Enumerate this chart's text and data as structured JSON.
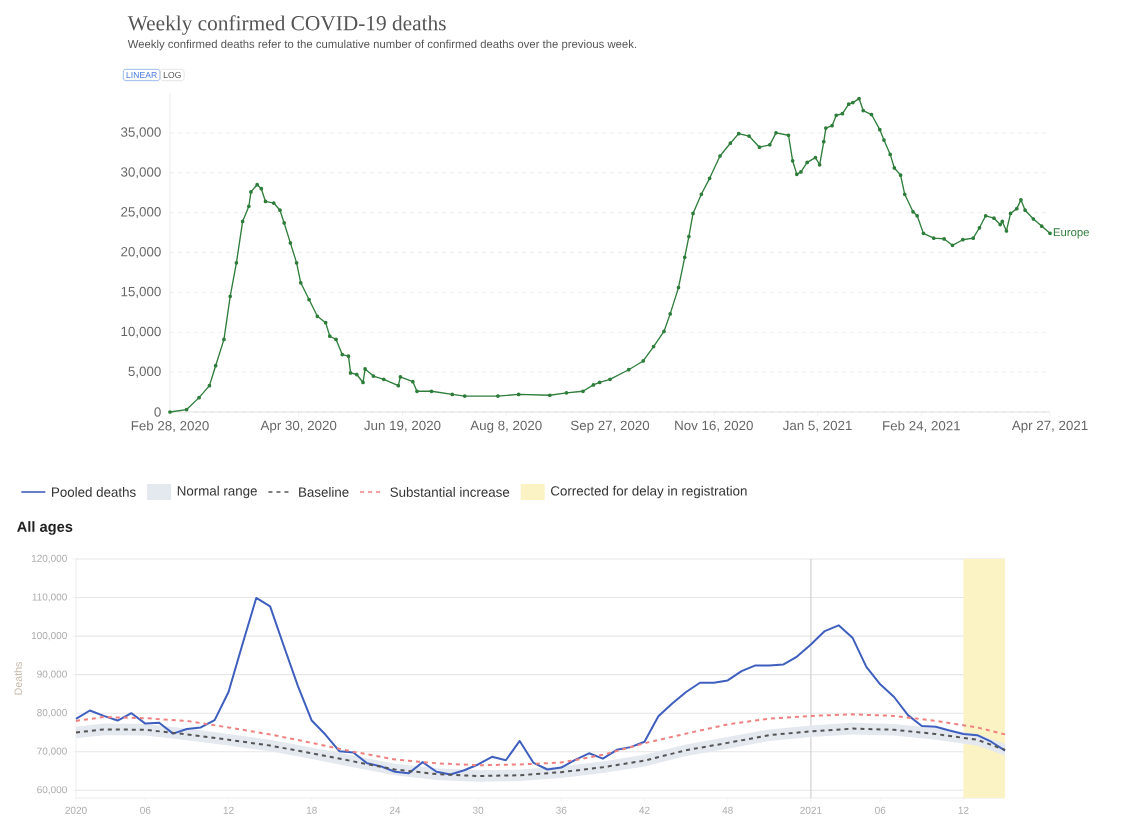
{
  "chart_data": [
    {
      "type": "line",
      "title": "Weekly confirmed COVID-19 deaths",
      "subtitle": "Weekly confirmed deaths refer to the cumulative number of confirmed deaths over the previous week.",
      "annotations": [
        "LINEAR",
        "LOG"
      ],
      "x": [
        "2020-02-28",
        "2020-03-07",
        "2020-03-13",
        "2020-03-18",
        "2020-03-21",
        "2020-03-25",
        "2020-03-28",
        "2020-03-31",
        "2020-04-03",
        "2020-04-06",
        "2020-04-07",
        "2020-04-10",
        "2020-04-12",
        "2020-04-14",
        "2020-04-18",
        "2020-04-21",
        "2020-04-23",
        "2020-04-26",
        "2020-04-29",
        "2020-05-01",
        "2020-05-05",
        "2020-05-09",
        "2020-05-13",
        "2020-05-15",
        "2020-05-18",
        "2020-05-21",
        "2020-05-24",
        "2020-05-25",
        "2020-05-28",
        "2020-05-31",
        "2020-06-01",
        "2020-06-05",
        "2020-06-10",
        "2020-06-17",
        "2020-06-18",
        "2020-06-24",
        "2020-06-26",
        "2020-07-03",
        "2020-07-13",
        "2020-07-19",
        "2020-08-04",
        "2020-08-14",
        "2020-08-29",
        "2020-09-06",
        "2020-09-14",
        "2020-09-19",
        "2020-09-22",
        "2020-09-27",
        "2020-10-06",
        "2020-10-13",
        "2020-10-18",
        "2020-10-23",
        "2020-10-26",
        "2020-10-30",
        "2020-11-02",
        "2020-11-04",
        "2020-11-06",
        "2020-11-10",
        "2020-11-14",
        "2020-11-19",
        "2020-11-24",
        "2020-11-28",
        "2020-12-03",
        "2020-12-08",
        "2020-12-13",
        "2020-12-16",
        "2020-12-22",
        "2020-12-24",
        "2020-12-26",
        "2020-12-28",
        "2020-12-31",
        "2021-01-04",
        "2021-01-06",
        "2021-01-08",
        "2021-01-09",
        "2021-01-12",
        "2021-01-14",
        "2021-01-17",
        "2021-01-20",
        "2021-01-22",
        "2021-01-25",
        "2021-01-27",
        "2021-01-31",
        "2021-02-04",
        "2021-02-06",
        "2021-02-09",
        "2021-02-11",
        "2021-02-14",
        "2021-02-16",
        "2021-02-20",
        "2021-02-22",
        "2021-02-25",
        "2021-03-02",
        "2021-03-07",
        "2021-03-11",
        "2021-03-16",
        "2021-03-21",
        "2021-03-24",
        "2021-03-27",
        "2021-03-31",
        "2021-04-03",
        "2021-04-04",
        "2021-04-06",
        "2021-04-08",
        "2021-04-11",
        "2021-04-13",
        "2021-04-15",
        "2021-04-19",
        "2021-04-23",
        "2021-04-27"
      ],
      "series": [
        {
          "name": "Europe",
          "color": "#2e7d3b",
          "values": [
            0,
            300,
            1800,
            3300,
            5800,
            9100,
            14500,
            18700,
            23900,
            25800,
            27600,
            28500,
            28000,
            26400,
            26200,
            25300,
            23700,
            21200,
            18700,
            16200,
            14100,
            12000,
            11200,
            9500,
            9100,
            7200,
            7000,
            4900,
            4700,
            3700,
            5400,
            4500,
            4100,
            3300,
            4400,
            3800,
            2600,
            2600,
            2200,
            2000,
            2000,
            2200,
            2100,
            2400,
            2600,
            3400,
            3700,
            4100,
            5300,
            6400,
            8200,
            10100,
            12300,
            15600,
            19400,
            22000,
            24900,
            27300,
            29300,
            32100,
            33700,
            34900,
            34600,
            33200,
            33500,
            35000,
            34700,
            31500,
            29800,
            30100,
            31300,
            31900,
            31000,
            33900,
            35600,
            35900,
            37200,
            37400,
            38600,
            38800,
            39300,
            37800,
            37300,
            35400,
            34100,
            32300,
            30600,
            29700,
            27300,
            25100,
            24600,
            22400,
            21800,
            21700,
            20900,
            21600,
            21800,
            23100,
            24600,
            24300,
            23500,
            23900,
            22700,
            24900,
            25500,
            26600,
            25300,
            24200,
            23300,
            22400
          ]
        }
      ],
      "xlim": [
        "2020-02-28",
        "2021-04-27"
      ],
      "ylim": [
        0,
        40000
      ],
      "xticks": [
        {
          "value": "2020-02-28",
          "label": "Feb 28, 2020"
        },
        {
          "value": "2020-04-30",
          "label": "Apr 30, 2020"
        },
        {
          "value": "2020-06-19",
          "label": "Jun 19, 2020"
        },
        {
          "value": "2020-08-08",
          "label": "Aug 8, 2020"
        },
        {
          "value": "2020-09-27",
          "label": "Sep 27, 2020"
        },
        {
          "value": "2020-11-16",
          "label": "Nov 16, 2020"
        },
        {
          "value": "2021-01-05",
          "label": "Jan 5, 2021"
        },
        {
          "value": "2021-02-24",
          "label": "Feb 24, 2021"
        },
        {
          "value": "2021-04-27",
          "label": "Apr 27, 2021"
        }
      ],
      "yticks": [
        0,
        {
          "value": 5000,
          "label": "5,000"
        },
        {
          "value": 10000,
          "label": "10,000"
        },
        {
          "value": 15000,
          "label": "15,000"
        },
        {
          "value": 20000,
          "label": "20,000"
        },
        {
          "value": 25000,
          "label": "25,000"
        },
        {
          "value": 30000,
          "label": "30,000"
        },
        {
          "value": 35000,
          "label": "35,000"
        }
      ],
      "grid": "y",
      "marker": "circle"
    },
    {
      "type": "line",
      "title": "All ages",
      "ylabel": "Deaths",
      "annotations": [
        "Normal range"
      ],
      "legend": "top",
      "grid": "y",
      "series": [
        {
          "name": "Pooled deaths",
          "color": "#3f5fbf",
          "x": [
            "2020-01-02",
            "2020-01-09",
            "2020-01-16",
            "2020-01-23",
            "2020-01-30",
            "2020-02-06",
            "2020-02-13",
            "2020-02-20",
            "2020-02-27",
            "2020-03-05",
            "2020-03-12",
            "2020-03-19",
            "2020-03-26",
            "2020-04-02",
            "2020-04-09",
            "2020-04-16",
            "2020-04-23",
            "2020-04-30",
            "2020-05-07",
            "2020-05-14",
            "2020-05-21",
            "2020-05-28",
            "2020-06-04",
            "2020-06-11",
            "2020-06-18",
            "2020-06-25",
            "2020-07-02",
            "2020-07-09",
            "2020-07-16",
            "2020-07-23",
            "2020-07-30",
            "2020-08-06",
            "2020-08-13",
            "2020-08-20",
            "2020-08-27",
            "2020-09-03",
            "2020-09-10",
            "2020-09-17",
            "2020-09-24",
            "2020-10-01",
            "2020-10-08",
            "2020-10-15",
            "2020-10-22",
            "2020-10-29",
            "2020-11-05",
            "2020-11-12",
            "2020-11-19",
            "2020-11-26",
            "2020-12-03",
            "2020-12-10",
            "2020-12-17",
            "2020-12-24",
            "2020-12-31",
            "2021-01-07",
            "2021-01-14",
            "2021-01-21",
            "2021-01-28",
            "2021-02-04",
            "2021-02-11",
            "2021-02-18",
            "2021-02-25",
            "2021-03-04",
            "2021-03-11",
            "2021-03-18",
            "2021-03-25",
            "2021-04-01",
            "2021-04-08",
            "2021-04-15"
          ],
          "values": [
            78500,
            80700,
            79300,
            78100,
            80000,
            77300,
            77500,
            74700,
            75900,
            76300,
            78200,
            85500,
            97800,
            109900,
            107700,
            97300,
            87100,
            78100,
            74400,
            70100,
            69800,
            67000,
            66200,
            64800,
            64400,
            67300,
            64800,
            64100,
            65200,
            66700,
            68700,
            67800,
            72800,
            67100,
            65400,
            65900,
            67900,
            69600,
            68200,
            70500,
            71200,
            72600,
            79200,
            82500,
            85500,
            87900,
            87900,
            88500,
            90900,
            92400,
            92400,
            92600,
            94700,
            97800,
            101300,
            102800,
            99600,
            92000,
            87500,
            84200,
            79500,
            76700,
            76500,
            75500,
            74600,
            74300,
            72600,
            70300
          ]
        },
        {
          "name": "Baseline",
          "color": "#555555",
          "line_style": "dashed",
          "lower": [
            73500,
            74300,
            74200,
            73000,
            71600,
            70100,
            68100,
            66000,
            63900,
            62700,
            62200,
            62400,
            63200,
            64500,
            66200,
            68900,
            70800,
            72800,
            73800,
            74500,
            74200,
            73100,
            71600,
            69000
          ],
          "upper": [
            76500,
            77300,
            77200,
            76000,
            74600,
            73100,
            71100,
            69000,
            66900,
            65700,
            65200,
            65400,
            66200,
            67500,
            69200,
            71900,
            73800,
            75800,
            76800,
            77500,
            77200,
            76100,
            74600,
            72000
          ],
          "x": [
            "2020-01-02",
            "2020-01-16",
            "2020-02-06",
            "2020-02-27",
            "2020-03-19",
            "2020-04-09",
            "2020-04-30",
            "2020-05-21",
            "2020-06-11",
            "2020-07-02",
            "2020-07-23",
            "2020-08-13",
            "2020-09-03",
            "2020-09-24",
            "2020-10-15",
            "2020-11-05",
            "2020-11-26",
            "2020-12-17",
            "2021-01-07",
            "2021-01-28",
            "2021-02-18",
            "2021-03-11",
            "2021-04-01",
            "2021-04-15"
          ],
          "values": [
            75000,
            75800,
            75700,
            74500,
            73100,
            71600,
            69600,
            67500,
            65400,
            64200,
            63700,
            63900,
            64700,
            66000,
            67700,
            70400,
            72300,
            74300,
            75300,
            76000,
            75700,
            74600,
            73100,
            70500
          ]
        },
        {
          "name": "Substantial increase",
          "color": "#f08080",
          "line_style": "dashed",
          "x": [
            "2020-01-02",
            "2020-01-16",
            "2020-02-06",
            "2020-02-27",
            "2020-03-19",
            "2020-04-09",
            "2020-04-30",
            "2020-05-21",
            "2020-06-11",
            "2020-07-02",
            "2020-07-23",
            "2020-08-13",
            "2020-09-03",
            "2020-09-24",
            "2020-10-15",
            "2020-11-05",
            "2020-11-26",
            "2020-12-17",
            "2021-01-07",
            "2021-01-28",
            "2021-02-18",
            "2021-03-11",
            "2021-04-01",
            "2021-04-15"
          ],
          "values": [
            78000,
            79000,
            78700,
            78000,
            76300,
            74500,
            72300,
            70000,
            68000,
            67000,
            66500,
            66700,
            67200,
            69200,
            72200,
            74700,
            77100,
            78600,
            79300,
            79700,
            79300,
            78000,
            76300,
            74500
          ]
        }
      ],
      "bands": [
        {
          "axis": "x",
          "from": "2021-03-25",
          "to": "2021-04-15",
          "label": "Corrected for delay in registration",
          "color": "#fcf3c4"
        }
      ],
      "ref_lines": [
        {
          "axis": "x",
          "value": "2021-01-07",
          "color": "#cccccc"
        }
      ],
      "xlim": [
        "2020-01-02",
        "2021-04-15"
      ],
      "ylim": [
        58000,
        120000
      ],
      "xticks": [
        {
          "value": "2020-01-02",
          "label": "2020"
        },
        {
          "value": "2020-02-06",
          "label": "06"
        },
        {
          "value": "2020-03-19",
          "label": "12"
        },
        {
          "value": "2020-04-30",
          "label": "18"
        },
        {
          "value": "2020-06-11",
          "label": "24"
        },
        {
          "value": "2020-07-23",
          "label": "30"
        },
        {
          "value": "2020-09-03",
          "label": "36"
        },
        {
          "value": "2020-10-15",
          "label": "42"
        },
        {
          "value": "2020-11-26",
          "label": "48"
        },
        {
          "value": "2021-01-07",
          "label": "2021"
        },
        {
          "value": "2021-02-11",
          "label": "06"
        },
        {
          "value": "2021-03-25",
          "label": "12"
        }
      ],
      "yticks": [
        {
          "value": 60000,
          "label": "60,000"
        },
        {
          "value": 70000,
          "label": "70,000"
        },
        {
          "value": 80000,
          "label": "80,000"
        },
        {
          "value": 90000,
          "label": "90,000"
        },
        {
          "value": 100000,
          "label": "100,000"
        },
        {
          "value": 110000,
          "label": "110,000"
        },
        {
          "value": 120000,
          "label": "120,000"
        }
      ]
    }
  ]
}
